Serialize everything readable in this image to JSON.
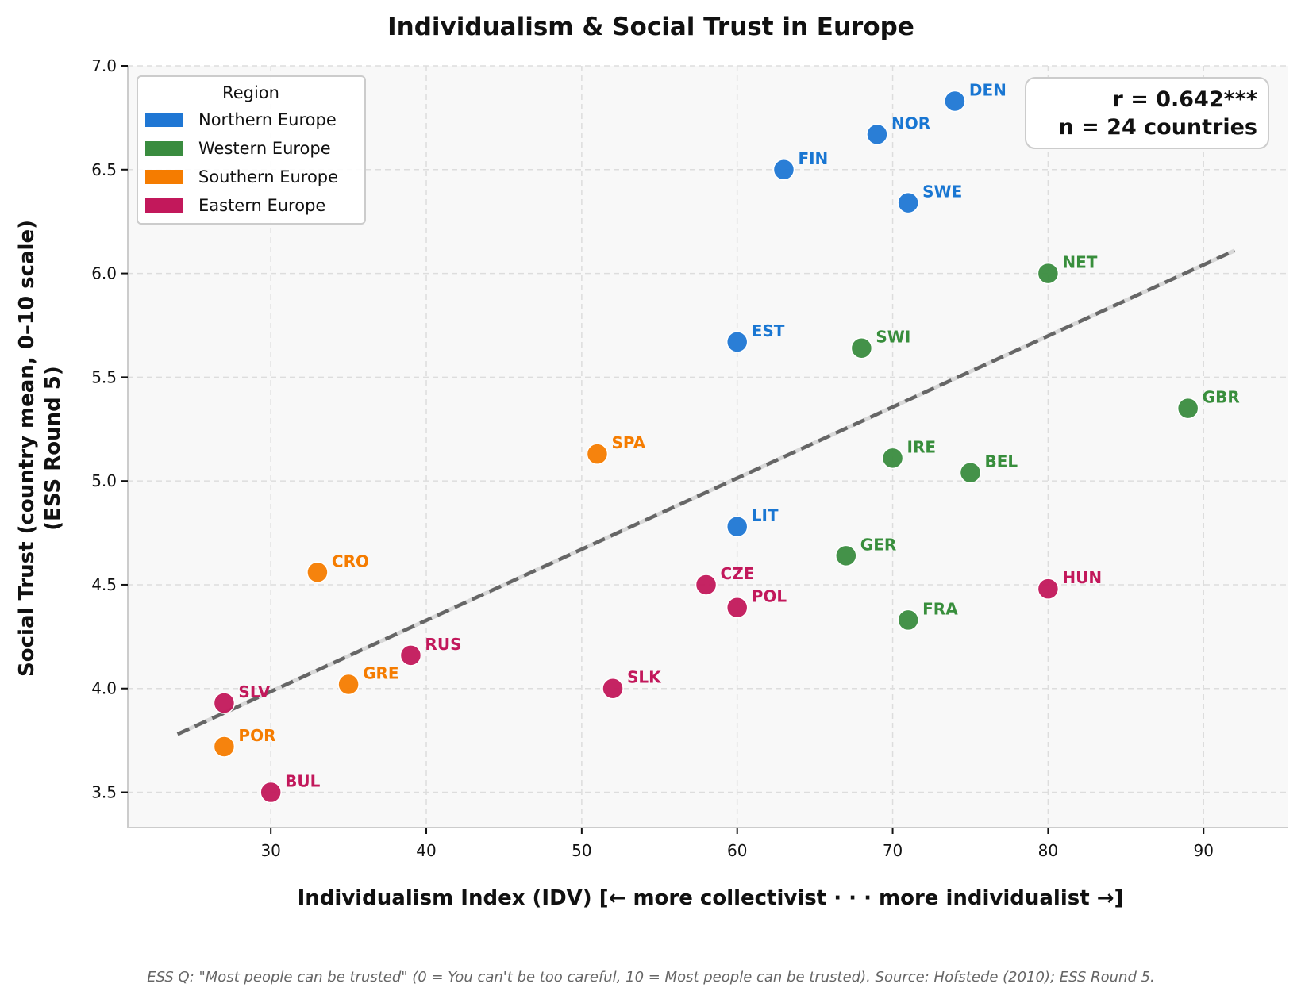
{
  "chart_data": {
    "type": "scatter",
    "title": "Individualism & Social Trust in Europe",
    "xlabel": "Individualism Index (IDV)   [← more collectivist · · · more individualist →]",
    "ylabel_line1": "Social Trust (country mean, 0–10 scale)",
    "ylabel_line2": "(ESS Round 5)",
    "xlim": [
      20.8,
      95.4
    ],
    "ylim": [
      3.33,
      7.0
    ],
    "x_ticks": [
      30,
      40,
      50,
      60,
      70,
      80,
      90
    ],
    "y_ticks": [
      3.5,
      4.0,
      4.5,
      5.0,
      5.5,
      6.0,
      6.5,
      7.0
    ],
    "y_tick_labels": [
      "3.5",
      "4.0",
      "4.5",
      "5.0",
      "5.5",
      "6.0",
      "6.5",
      "7.0"
    ],
    "grid": true,
    "legend": {
      "title": "Region",
      "placement": "top-left",
      "entries": [
        {
          "name": "Northern Europe",
          "color": "#1f77d4"
        },
        {
          "name": "Western Europe",
          "color": "#3a8c3f"
        },
        {
          "name": "Southern Europe",
          "color": "#f57c00"
        },
        {
          "name": "Eastern Europe",
          "color": "#c2185b"
        }
      ]
    },
    "series": [
      {
        "name": "Northern Europe",
        "color": "#1f77d4",
        "label_color": "#1976d2",
        "points": [
          {
            "label": "DEN",
            "x": 74,
            "y": 6.83
          },
          {
            "label": "NOR",
            "x": 69,
            "y": 6.67
          },
          {
            "label": "FIN",
            "x": 63,
            "y": 6.5
          },
          {
            "label": "SWE",
            "x": 71,
            "y": 6.34
          },
          {
            "label": "EST",
            "x": 60,
            "y": 5.67
          },
          {
            "label": "LIT",
            "x": 60,
            "y": 4.78
          }
        ]
      },
      {
        "name": "Western Europe",
        "color": "#3a8c3f",
        "label_color": "#388e3c",
        "points": [
          {
            "label": "NET",
            "x": 80,
            "y": 6.0
          },
          {
            "label": "SWI",
            "x": 68,
            "y": 5.64
          },
          {
            "label": "GBR",
            "x": 89,
            "y": 5.35
          },
          {
            "label": "IRE",
            "x": 70,
            "y": 5.11
          },
          {
            "label": "BEL",
            "x": 75,
            "y": 5.04
          },
          {
            "label": "GER",
            "x": 67,
            "y": 4.64
          },
          {
            "label": "FRA",
            "x": 71,
            "y": 4.33
          }
        ]
      },
      {
        "name": "Southern Europe",
        "color": "#f57c00",
        "label_color": "#f57c00",
        "points": [
          {
            "label": "SPA",
            "x": 51,
            "y": 5.13
          },
          {
            "label": "CRO",
            "x": 33,
            "y": 4.56
          },
          {
            "label": "GRE",
            "x": 35,
            "y": 4.02
          },
          {
            "label": "POR",
            "x": 27,
            "y": 3.72
          }
        ]
      },
      {
        "name": "Eastern Europe",
        "color": "#c2185b",
        "label_color": "#c2185b",
        "points": [
          {
            "label": "CZE",
            "x": 58,
            "y": 4.5
          },
          {
            "label": "POL",
            "x": 60,
            "y": 4.39
          },
          {
            "label": "HUN",
            "x": 80,
            "y": 4.48
          },
          {
            "label": "RUS",
            "x": 39,
            "y": 4.16
          },
          {
            "label": "SLK",
            "x": 52,
            "y": 4.0
          },
          {
            "label": "SLV",
            "x": 27,
            "y": 3.93
          },
          {
            "label": "BUL",
            "x": 30,
            "y": 3.5
          }
        ]
      }
    ],
    "trend_line": {
      "x": [
        24,
        92
      ],
      "y": [
        3.78,
        6.11
      ],
      "style": "dashed",
      "color": "#666666"
    },
    "annotation": {
      "line1": "r = 0.642***",
      "line2": "n = 24 countries",
      "placement": "top-right"
    },
    "footnote": "ESS Q: \"Most people can be trusted\" (0 = You can't be too careful, 10 = Most people can be trusted).  Source: Hofstede (2010); ESS Round 5."
  }
}
